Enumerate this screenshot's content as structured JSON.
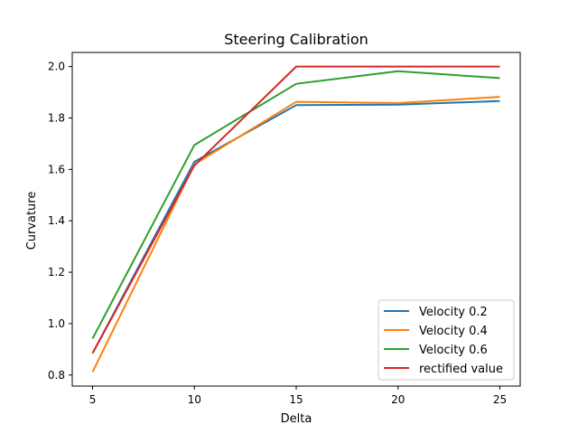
{
  "chart_data": {
    "type": "line",
    "title": "Steering Calibration",
    "xlabel": "Delta",
    "ylabel": "Curvature",
    "x": [
      5,
      10,
      15,
      20,
      25
    ],
    "xticks": [
      5,
      10,
      15,
      20,
      25
    ],
    "yticks": [
      0.8,
      1.0,
      1.2,
      1.4,
      1.6,
      1.8,
      2.0
    ],
    "xlim": [
      4.0,
      26.0
    ],
    "ylim": [
      0.757,
      2.055
    ],
    "grid": false,
    "legend_position": "lower-right",
    "series": [
      {
        "name": "Velocity 0.2",
        "color": "#1f77b4",
        "values": [
          0.885,
          1.63,
          1.85,
          1.852,
          1.866
        ]
      },
      {
        "name": "Velocity 0.4",
        "color": "#ff7f0e",
        "values": [
          0.812,
          1.62,
          1.863,
          1.858,
          1.882
        ]
      },
      {
        "name": "Velocity 0.6",
        "color": "#2ca02c",
        "values": [
          0.942,
          1.695,
          1.933,
          1.982,
          1.955
        ]
      },
      {
        "name": "rectified value",
        "color": "#d62728",
        "values": [
          0.885,
          1.615,
          2.0,
          2.0,
          2.0
        ]
      }
    ]
  }
}
